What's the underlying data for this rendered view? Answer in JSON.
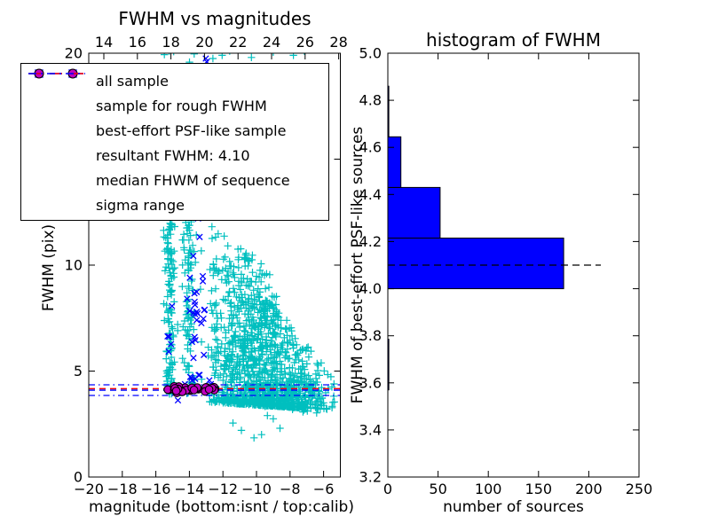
{
  "figure": {
    "kind": "matplotlib-figure",
    "background": "#ffffff"
  },
  "colors": {
    "cyan": "#00bfbf",
    "blue": "#0000ff",
    "magenta": "#bf00bf",
    "red": "#ff0000",
    "black": "#000000",
    "bar_fill": "#0000ff"
  },
  "chart_data": [
    {
      "id": "fwhm-vs-magnitudes",
      "type": "scatter",
      "title": "FWHM vs magnitudes",
      "xlabel": "magnitude (bottom:isnt / top:calib)",
      "ylabel": "FWHM (pix)",
      "xlim": [
        -20,
        -5
      ],
      "xlim_top": [
        13.1,
        28.1
      ],
      "ylim": [
        0,
        20
      ],
      "grid": false,
      "x_ticks_bottom": {
        "values": [
          -20,
          -18,
          -16,
          -14,
          -12,
          -10,
          -8,
          -6
        ],
        "labels": [
          "−20",
          "−18",
          "−16",
          "−14",
          "−12",
          "−10",
          "−8",
          "−6"
        ]
      },
      "x_ticks_top": {
        "values": [
          14,
          16,
          18,
          20,
          22,
          24,
          26,
          28
        ],
        "labels": [
          "14",
          "16",
          "18",
          "20",
          "22",
          "24",
          "26",
          "28"
        ]
      },
      "y_ticks": {
        "values": [
          0,
          5,
          10,
          15,
          20
        ],
        "labels": [
          "0",
          "5",
          "10",
          "15",
          "20"
        ]
      },
      "legend": {
        "position": "upper left",
        "entries": [
          {
            "label": "all sample",
            "marker": "plus",
            "color": "#00bfbf"
          },
          {
            "label": "sample for rough FWHM",
            "marker": "cross",
            "color": "#0000ff"
          },
          {
            "label": "best-effort PSF-like sample",
            "marker": "dot",
            "color": "#bf00bf"
          },
          {
            "label": "resultant FWHM: 4.10",
            "marker": "dashed-line",
            "color": "#0000ff"
          },
          {
            "label": "median FHWM of sequence",
            "marker": "dashed-line",
            "color": "#ff0000"
          },
          {
            "label": "sigma range",
            "marker": "dashdot-line",
            "color": "#0000ff"
          }
        ]
      },
      "hlines": [
        {
          "name": "resultant-fwhm",
          "value": 4.1,
          "color": "#0000ff",
          "style": "dashed"
        },
        {
          "name": "median-fwhm",
          "value": 4.17,
          "color": "#ff0000",
          "style": "dashed"
        },
        {
          "name": "sigma-upper",
          "value": 4.35,
          "color": "#0000ff",
          "style": "dashdot"
        },
        {
          "name": "sigma-lower",
          "value": 3.85,
          "color": "#0000ff",
          "style": "dashdot"
        }
      ],
      "series": [
        {
          "name": "all sample",
          "marker": "plus",
          "color": "#00bfbf",
          "clusters": [
            {
              "seed": 11,
              "n": 115,
              "x": {
                "dist": "normal",
                "mu": -15.15,
                "sigma": 0.13,
                "min": -15.6,
                "max": -14.72
              },
              "y": {
                "dist": "uniform",
                "min": 3.9,
                "max": 12
              }
            },
            {
              "seed": 12,
              "n": 30,
              "x": {
                "dist": "normal",
                "mu": -15.12,
                "sigma": 0.15,
                "min": -15.55,
                "max": -14.7
              },
              "y": {
                "dist": "uniform",
                "min": 12,
                "max": 20.3
              }
            },
            {
              "seed": 13,
              "n": 85,
              "x": {
                "dist": "normal",
                "mu": -14.02,
                "sigma": 0.16,
                "min": -14.5,
                "max": -13.55
              },
              "y": {
                "dist": "uniform",
                "min": 3.9,
                "max": 12
              }
            },
            {
              "seed": 14,
              "n": 18,
              "x": {
                "dist": "normal",
                "mu": -14.0,
                "sigma": 0.18,
                "min": -14.5,
                "max": -13.5
              },
              "y": {
                "dist": "uniform",
                "min": 12,
                "max": 20.3
              }
            },
            {
              "seed": 15,
              "n": 45,
              "x": {
                "dist": "uniform",
                "min": -15.55,
                "max": -13.2
              },
              "y": {
                "dist": "uniform",
                "min": 4.2,
                "max": 20.3
              }
            },
            {
              "seed": 16,
              "n": 950,
              "x": {
                "dist": "normal",
                "mu": -9.9,
                "sigma": 1.8,
                "min": -12.9,
                "max": -5.15
              },
              "wedge": {
                "x0": -12.9,
                "x1": -5.15,
                "ytop0": 11.5,
                "ytop1": 4.6,
                "ybase0": 3.55,
                "ybase1": 3.15,
                "pow": 2.6
              }
            },
            {
              "seed": 17,
              "n": 200,
              "x": {
                "dist": "normal",
                "mu": -10.4,
                "sigma": 1.2,
                "min": -12.7,
                "max": -8.0
              },
              "wedge": {
                "x0": -12.7,
                "x1": -8.0,
                "ytop0": 12.3,
                "ytop1": 8.8,
                "ybase0": 5.0,
                "ybase1": 4.3,
                "pow": 1.0
              }
            },
            {
              "seed": 18,
              "n": 120,
              "x": {
                "dist": "normal",
                "mu": -7.6,
                "sigma": 1.2,
                "min": -9.5,
                "max": -5.2
              },
              "y": {
                "dist": "normal",
                "mu": 3.9,
                "sigma": 0.45,
                "min": 3.0,
                "max": 5.2
              }
            },
            {
              "seed": 19,
              "points": [
                [
                  -11.4,
                  2.55
                ],
                [
                  -10.9,
                  2.2
                ],
                [
                  -10.15,
                  1.85
                ],
                [
                  -9.7,
                  2.0
                ],
                [
                  -9.35,
                  2.9
                ],
                [
                  -9.0,
                  2.75
                ],
                [
                  -8.6,
                  2.3
                ]
              ]
            },
            {
              "seed": 20,
              "points": [
                [
                  -12.05,
                  19.9
                ],
                [
                  -11.6,
                  20.1
                ],
                [
                  -10.3,
                  19.8
                ],
                [
                  -9.0,
                  20.05
                ],
                [
                  -7.8,
                  19.9
                ],
                [
                  -7.15,
                  20.1
                ],
                [
                  -15.2,
                  20.1
                ],
                [
                  -12.6,
                  19.75
                ]
              ]
            }
          ]
        },
        {
          "name": "sample for rough FWHM",
          "marker": "cross",
          "color": "#0000ff",
          "clusters": [
            {
              "seed": 31,
              "n": 15,
              "x": {
                "dist": "normal",
                "mu": -13.62,
                "sigma": 0.28,
                "min": -14.3,
                "max": -13.05
              },
              "y": {
                "dist": "uniform",
                "min": 6.0,
                "max": 8.8
              }
            },
            {
              "seed": 32,
              "n": 12,
              "x": {
                "dist": "normal",
                "mu": -13.6,
                "sigma": 0.3,
                "min": -14.35,
                "max": -13.0
              },
              "y": {
                "dist": "uniform",
                "min": 4.6,
                "max": 12.4
              }
            },
            {
              "seed": 33,
              "n": 5,
              "x": {
                "dist": "normal",
                "mu": -15.25,
                "sigma": 0.12,
                "min": -15.5,
                "max": -15.0
              },
              "y": {
                "dist": "uniform",
                "min": 5.3,
                "max": 8.2
              }
            },
            {
              "seed": 34,
              "n": 7,
              "x": {
                "dist": "uniform",
                "min": -14.3,
                "max": -12.55
              },
              "y": {
                "dist": "normal",
                "mu": 4.55,
                "sigma": 0.18,
                "min": 4.2,
                "max": 5.0
              }
            },
            {
              "seed": 35,
              "points": [
                [
                  -14.68,
                  3.62
                ],
                [
                  -13.02,
                  19.75
                ],
                [
                  -12.97,
                  19.6
                ],
                [
                  -13.55,
                  12.3
                ],
                [
                  -13.48,
                  12.2
                ]
              ]
            }
          ]
        },
        {
          "name": "best-effort PSF-like sample",
          "marker": "dot",
          "color": "#bf00bf",
          "clusters": [
            {
              "seed": 41,
              "n": 34,
              "x": {
                "dist": "uniform",
                "min": -15.3,
                "max": -12.45
              },
              "y": {
                "dist": "normal",
                "mu": 4.13,
                "sigma": 0.08,
                "min": 3.94,
                "max": 4.3
              }
            }
          ]
        }
      ]
    },
    {
      "id": "histogram-of-fwhm",
      "type": "bar-horizontal",
      "title": "histogram of FWHM",
      "xlabel": "number of sources",
      "ylabel": "FWHM of best-effort PSF-like sources",
      "xlim": [
        0,
        250
      ],
      "ylim": [
        3.2,
        5.0
      ],
      "grid": false,
      "x_ticks": {
        "values": [
          0,
          50,
          100,
          150,
          200,
          250
        ],
        "labels": [
          "0",
          "50",
          "100",
          "150",
          "200",
          "250"
        ]
      },
      "y_ticks": {
        "values": [
          3.2,
          3.4,
          3.6,
          3.8,
          4.0,
          4.2,
          4.4,
          4.6,
          4.8,
          5.0
        ],
        "labels": [
          "3.2",
          "3.4",
          "3.6",
          "3.8",
          "4.0",
          "4.2",
          "4.4",
          "4.6",
          "4.8",
          "5.0"
        ]
      },
      "bar_color": "#0000ff",
      "bar_edge_color": "#000000",
      "bin_edges": [
        3.57,
        3.785,
        4.0,
        4.215,
        4.43,
        4.645,
        4.86
      ],
      "counts": [
        1,
        0,
        175,
        52,
        13,
        1
      ],
      "hline": {
        "name": "median-fwhm",
        "value": 4.1,
        "color": "#000000",
        "style": "dashed",
        "x_end": 212
      }
    }
  ]
}
